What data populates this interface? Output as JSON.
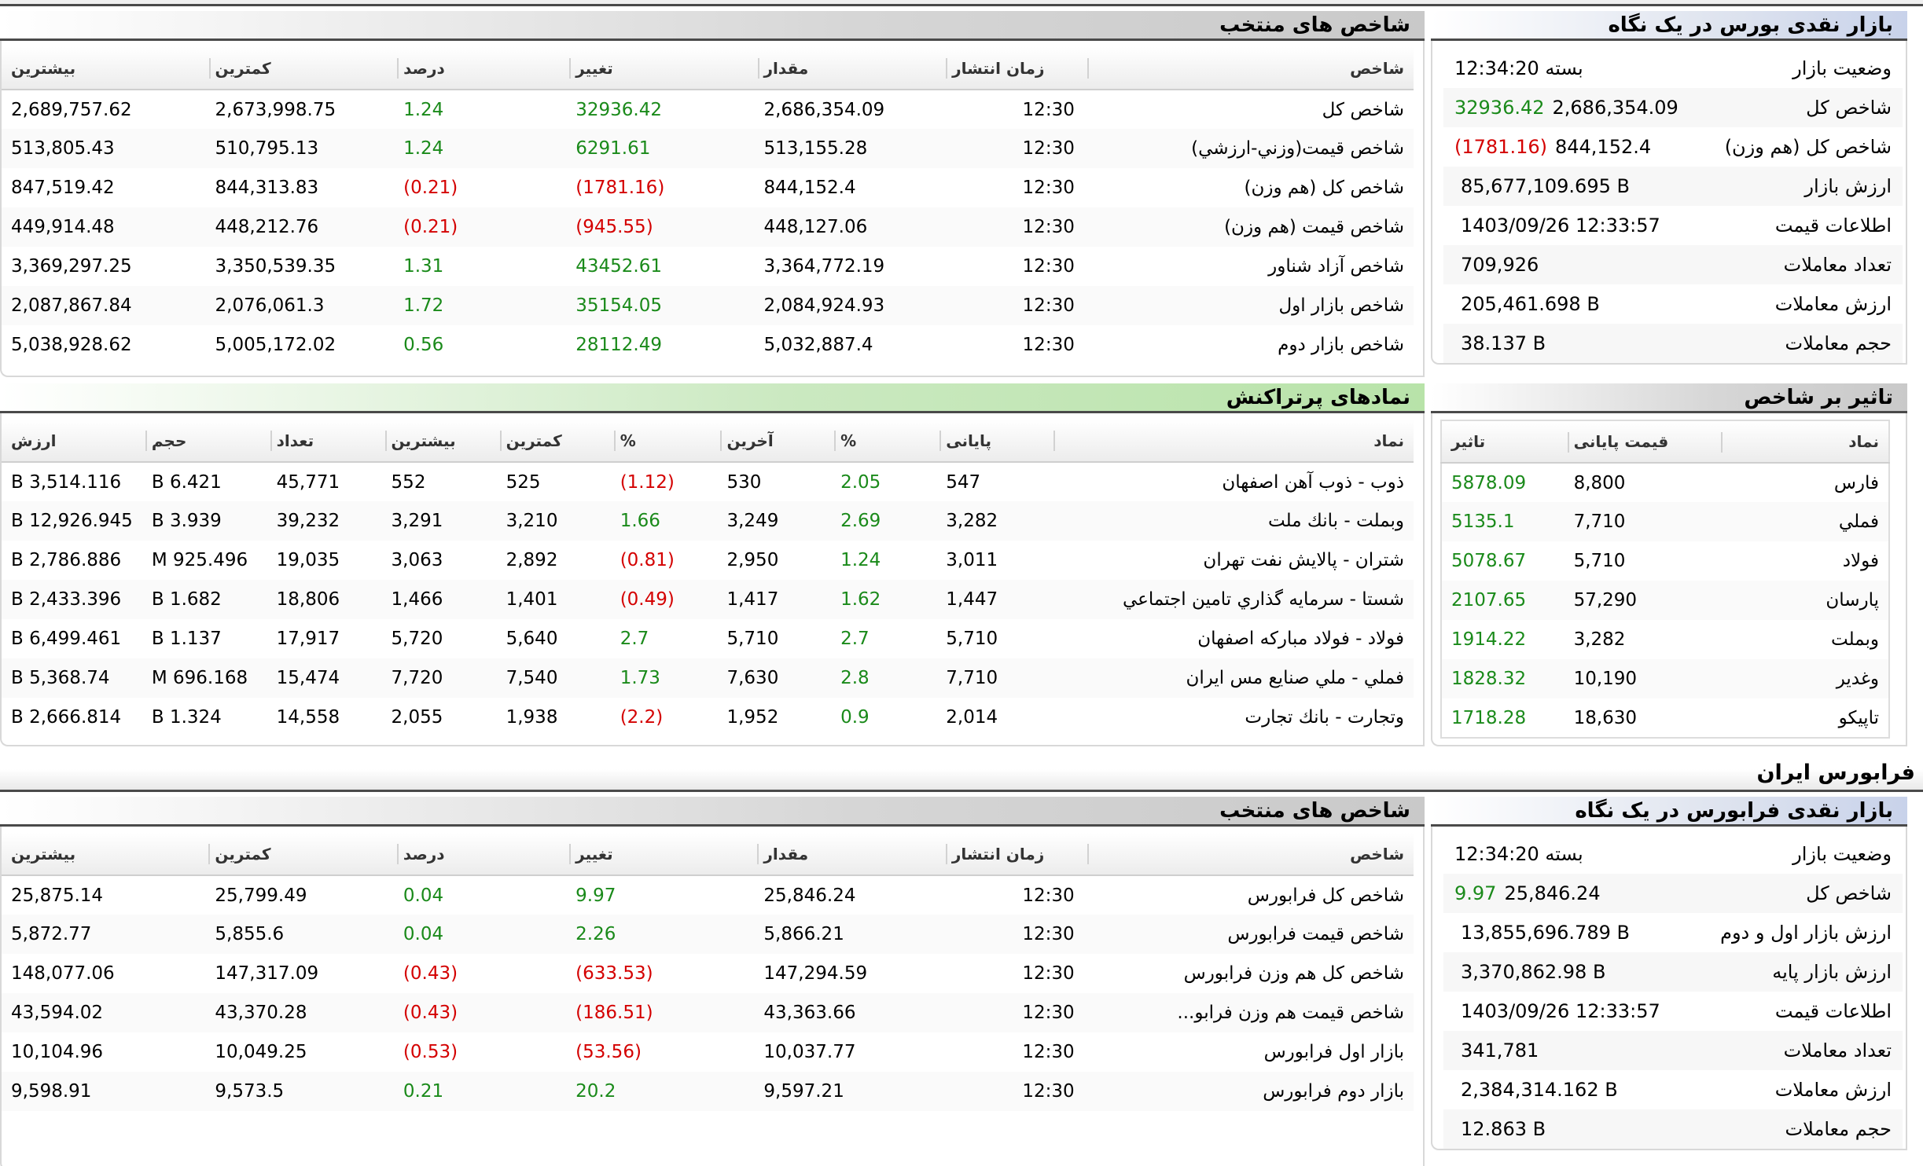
{
  "bourse": {
    "glance": {
      "title": "بازار نقدی بورس در یک نگاه",
      "rows": [
        {
          "label": "وضعیت بازار",
          "value": "بسته 12:34:20",
          "change": ""
        },
        {
          "label": "شاخص کل",
          "value": "2,686,354.09",
          "change": "32936.42"
        },
        {
          "label": "شاخص کل (هم وزن)",
          "value": "844,152.4",
          "change": "(1781.16)"
        },
        {
          "label": "ارزش بازار",
          "value": "85,677,109.695 B",
          "change": ""
        },
        {
          "label": "اطلاعات قیمت",
          "value": "1403/09/26 12:33:57",
          "change": ""
        },
        {
          "label": "تعداد معاملات",
          "value": "709,926",
          "change": ""
        },
        {
          "label": "ارزش معاملات",
          "value": "205,461.698 B",
          "change": ""
        },
        {
          "label": "حجم معاملات",
          "value": "38.137 B",
          "change": ""
        }
      ]
    },
    "indices": {
      "title": "شاخص های منتخب",
      "columns": [
        "شاخص",
        "زمان انتشار",
        "مقدار",
        "تغییر",
        "درصد",
        "کمترین",
        "بیشترین"
      ],
      "rows": [
        {
          "name": "شاخص كل",
          "time": "12:30",
          "value": "2,686,354.09",
          "change": "32936.42",
          "percent": "1.24",
          "min": "2,673,998.75",
          "max": "2,689,757.62"
        },
        {
          "name": "شاخص قيمت(وزني-ارزشي)",
          "time": "12:30",
          "value": "513,155.28",
          "change": "6291.61",
          "percent": "1.24",
          "min": "510,795.13",
          "max": "513,805.43"
        },
        {
          "name": "شاخص كل (هم وزن)",
          "time": "12:30",
          "value": "844,152.4",
          "change": "(1781.16)",
          "percent": "(0.21)",
          "min": "844,313.83",
          "max": "847,519.42"
        },
        {
          "name": "شاخص قيمت (هم وزن)",
          "time": "12:30",
          "value": "448,127.06",
          "change": "(945.55)",
          "percent": "(0.21)",
          "min": "448,212.76",
          "max": "449,914.48"
        },
        {
          "name": "شاخص آزاد شناور",
          "time": "12:30",
          "value": "3,364,772.19",
          "change": "43452.61",
          "percent": "1.31",
          "min": "3,350,539.35",
          "max": "3,369,297.25"
        },
        {
          "name": "شاخص بازار اول",
          "time": "12:30",
          "value": "2,084,924.93",
          "change": "35154.05",
          "percent": "1.72",
          "min": "2,076,061.3",
          "max": "2,087,867.84"
        },
        {
          "name": "شاخص بازار دوم",
          "time": "12:30",
          "value": "5,032,887.4",
          "change": "28112.49",
          "percent": "0.56",
          "min": "5,005,172.02",
          "max": "5,038,928.62"
        }
      ]
    },
    "impact": {
      "title": "تاثیر بر شاخص",
      "columns": [
        "نماد",
        "قیمت پایانی",
        "تاثیر"
      ],
      "rows": [
        {
          "symbol": "فارس",
          "close": "8,800",
          "impact": "5878.09"
        },
        {
          "symbol": "فملي",
          "close": "7,710",
          "impact": "5135.1"
        },
        {
          "symbol": "فولاد",
          "close": "5,710",
          "impact": "5078.67"
        },
        {
          "symbol": "پارسان",
          "close": "57,290",
          "impact": "2107.65"
        },
        {
          "symbol": "وبملت",
          "close": "3,282",
          "impact": "1914.22"
        },
        {
          "symbol": "وغدير",
          "close": "10,190",
          "impact": "1828.32"
        },
        {
          "symbol": "تاپيكو",
          "close": "18,630",
          "impact": "1718.28"
        }
      ]
    },
    "active": {
      "title": "نمادهای پرتراکنش",
      "columns": [
        "نماد",
        "پایانی",
        "%",
        "آخرین",
        "%",
        "کمترین",
        "بیشترین",
        "تعداد",
        "حجم",
        "ارزش"
      ],
      "rows": [
        {
          "symbol": "ذوب - ذوب آهن اصفهان",
          "close": "547",
          "close_pct": "2.05",
          "last": "530",
          "last_pct": "(1.12)",
          "min": "525",
          "max": "552",
          "count": "45,771",
          "volume": "6.421 B",
          "value": "3,514.116 B"
        },
        {
          "symbol": "وبملت - بانك ملت",
          "close": "3,282",
          "close_pct": "2.69",
          "last": "3,249",
          "last_pct": "1.66",
          "min": "3,210",
          "max": "3,291",
          "count": "39,232",
          "volume": "3.939 B",
          "value": "12,926.945 B"
        },
        {
          "symbol": "شتران - پالايش نفت تهران",
          "close": "3,011",
          "close_pct": "1.24",
          "last": "2,950",
          "last_pct": "(0.81)",
          "min": "2,892",
          "max": "3,063",
          "count": "19,035",
          "volume": "925.496 M",
          "value": "2,786.886 B"
        },
        {
          "symbol": "شستا - سرمايه گذاري تامين اجتماعي",
          "close": "1,447",
          "close_pct": "1.62",
          "last": "1,417",
          "last_pct": "(0.49)",
          "min": "1,401",
          "max": "1,466",
          "count": "18,806",
          "volume": "1.682 B",
          "value": "2,433.396 B"
        },
        {
          "symbol": "فولاد - فولاد مباركه اصفهان",
          "close": "5,710",
          "close_pct": "2.7",
          "last": "5,710",
          "last_pct": "2.7",
          "min": "5,640",
          "max": "5,720",
          "count": "17,917",
          "volume": "1.137 B",
          "value": "6,499.461 B"
        },
        {
          "symbol": "فملي - ملي صنايع مس ايران",
          "close": "7,710",
          "close_pct": "2.8",
          "last": "7,630",
          "last_pct": "1.73",
          "min": "7,540",
          "max": "7,720",
          "count": "15,474",
          "volume": "696.168 M",
          "value": "5,368.74 B"
        },
        {
          "symbol": "وتجارت - بانك تجارت",
          "close": "2,014",
          "close_pct": "0.9",
          "last": "1,952",
          "last_pct": "(2.2)",
          "min": "1,938",
          "max": "2,055",
          "count": "14,558",
          "volume": "1.324 B",
          "value": "2,666.814 B"
        }
      ]
    }
  },
  "farabourse": {
    "section_title": "فرابورس ایران",
    "glance": {
      "title": "بازار نقدی فرابورس در یک نگاه",
      "rows": [
        {
          "label": "وضعیت بازار",
          "value": "بسته 12:34:20",
          "change": ""
        },
        {
          "label": "شاخص کل",
          "value": "25,846.24",
          "change": "9.97"
        },
        {
          "label": "ارزش بازار اول و دوم",
          "value": "13,855,696.789 B",
          "change": ""
        },
        {
          "label": "ارزش بازار پایه",
          "value": "3,370,862.98 B",
          "change": ""
        },
        {
          "label": "اطلاعات قیمت",
          "value": "1403/09/26 12:33:57",
          "change": ""
        },
        {
          "label": "تعداد معاملات",
          "value": "341,781",
          "change": ""
        },
        {
          "label": "ارزش معاملات",
          "value": "2,384,314.162 B",
          "change": ""
        },
        {
          "label": "حجم معاملات",
          "value": "12.863 B",
          "change": ""
        }
      ]
    },
    "indices": {
      "title": "شاخص های منتخب",
      "columns": [
        "شاخص",
        "زمان انتشار",
        "مقدار",
        "تغییر",
        "درصد",
        "کمترین",
        "بیشترین"
      ],
      "rows": [
        {
          "name": "شاخص كل فرابورس",
          "time": "12:30",
          "value": "25,846.24",
          "change": "9.97",
          "percent": "0.04",
          "min": "25,799.49",
          "max": "25,875.14"
        },
        {
          "name": "شاخص قيمت فرابورس",
          "time": "12:30",
          "value": "5,866.21",
          "change": "2.26",
          "percent": "0.04",
          "min": "5,855.6",
          "max": "5,872.77"
        },
        {
          "name": "شاخص كل هم وزن فرابورس",
          "time": "12:30",
          "value": "147,294.59",
          "change": "(633.53)",
          "percent": "(0.43)",
          "min": "147,317.09",
          "max": "148,077.06"
        },
        {
          "name": "شاخص قيمت هم وزن فرابو...",
          "time": "12:30",
          "value": "43,363.66",
          "change": "(186.51)",
          "percent": "(0.43)",
          "min": "43,370.28",
          "max": "43,594.02"
        },
        {
          "name": "بازار اول فرابورس",
          "time": "12:30",
          "value": "10,037.77",
          "change": "(53.56)",
          "percent": "(0.53)",
          "min": "10,049.25",
          "max": "10,104.96"
        },
        {
          "name": "بازار دوم فرابورس",
          "time": "12:30",
          "value": "9,597.21",
          "change": "20.2",
          "percent": "0.21",
          "min": "9,573.5",
          "max": "9,598.91"
        }
      ]
    }
  },
  "colors": {
    "positive": "#1a8a1a",
    "negative": "#d40000"
  }
}
